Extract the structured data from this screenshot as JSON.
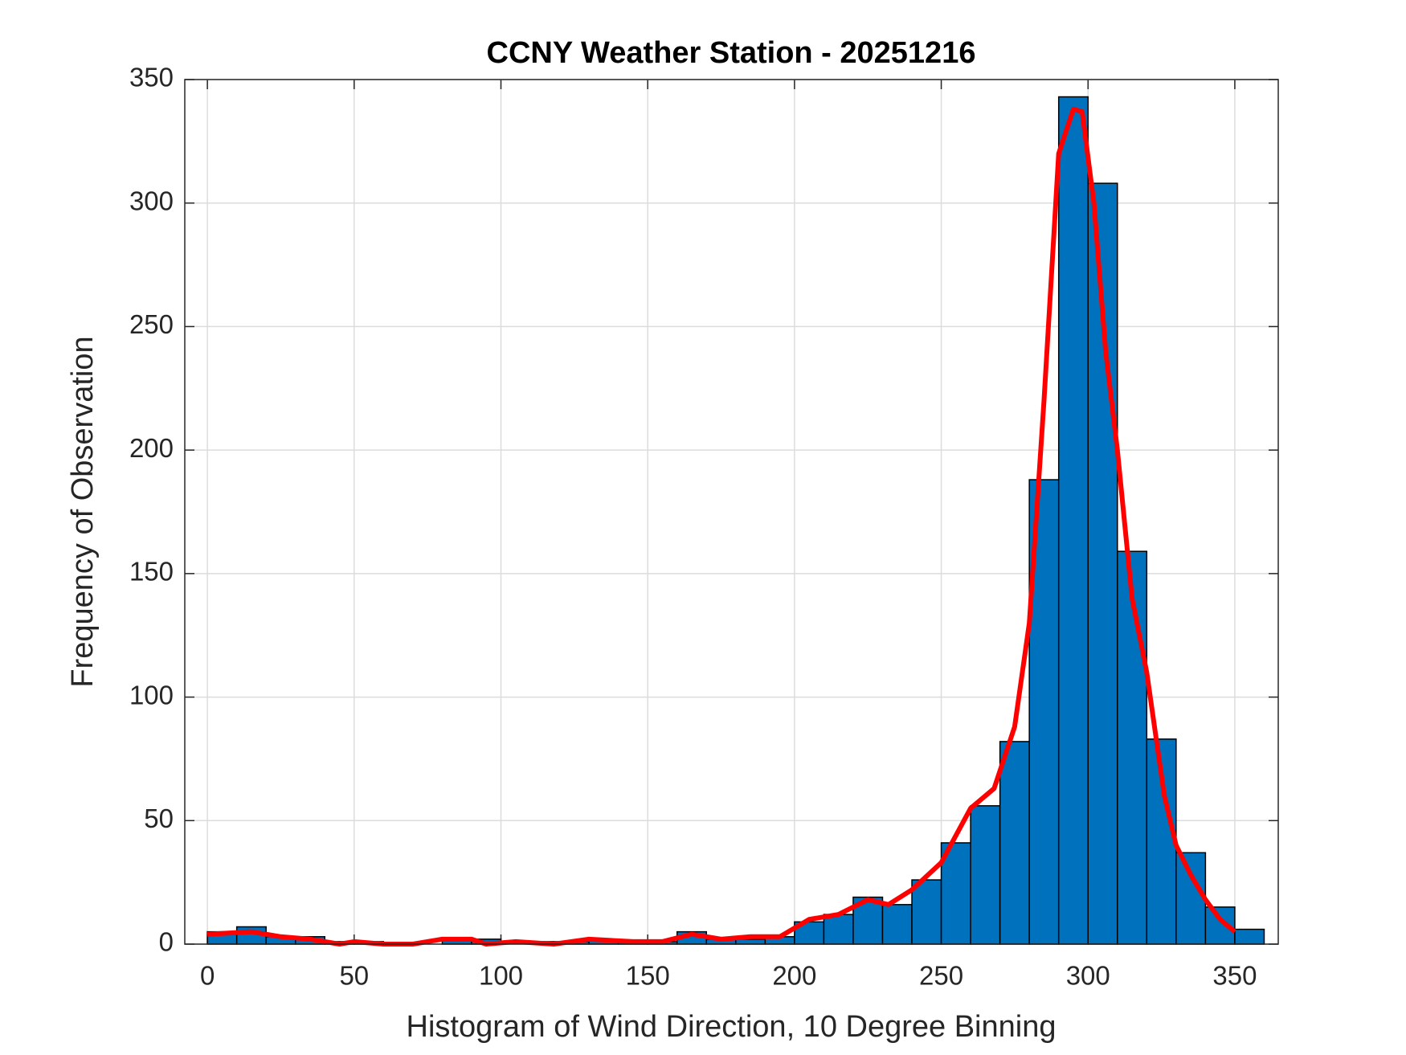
{
  "chart_data": {
    "type": "histogram",
    "title": "CCNY Weather Station - 20251216",
    "x_label": "Histogram of Wind Direction, 10 Degree Binning",
    "y_label": "Frequency of Observation",
    "bins": [
      0,
      10,
      20,
      30,
      40,
      50,
      60,
      70,
      80,
      90,
      100,
      110,
      120,
      130,
      140,
      150,
      160,
      170,
      180,
      190,
      200,
      210,
      220,
      230,
      240,
      250,
      260,
      270,
      280,
      290,
      300,
      310,
      320,
      330,
      340,
      350,
      360
    ],
    "values": [
      5,
      7,
      3,
      3,
      1,
      1,
      0,
      0,
      2,
      2,
      0,
      1,
      1,
      2,
      1,
      1,
      5,
      2,
      2,
      3,
      9,
      12,
      19,
      16,
      26,
      41,
      56,
      82,
      188,
      343,
      308,
      159,
      83,
      37,
      15,
      6
    ],
    "color": "#0072bd",
    "curve": {
      "color": "#ff0000",
      "x": [
        0,
        15,
        25,
        35,
        45,
        50,
        60,
        70,
        80,
        90,
        95,
        105,
        118,
        130,
        145,
        155,
        165,
        175,
        185,
        195,
        205,
        215,
        225,
        232,
        240,
        250,
        260,
        268,
        275,
        280,
        285,
        290,
        295,
        298,
        302,
        306,
        310,
        315,
        320,
        326,
        330,
        335,
        340,
        345,
        350
      ],
      "values": [
        4,
        5,
        3,
        2,
        0,
        1,
        0,
        0,
        2,
        2,
        0,
        1,
        0,
        2,
        1,
        1,
        4,
        2,
        3,
        3,
        10,
        12,
        18,
        16,
        22,
        33,
        55,
        63,
        88,
        130,
        220,
        320,
        338,
        337,
        300,
        240,
        200,
        140,
        110,
        60,
        40,
        28,
        18,
        10,
        5
      ]
    },
    "xlim": [
      -7.7,
      364.8
    ],
    "xticks": [
      0,
      50,
      100,
      150,
      200,
      250,
      300,
      350
    ],
    "ylim": [
      0,
      350
    ],
    "yticks": [
      0,
      50,
      100,
      150,
      200,
      250,
      300,
      350
    ],
    "grid": true
  }
}
